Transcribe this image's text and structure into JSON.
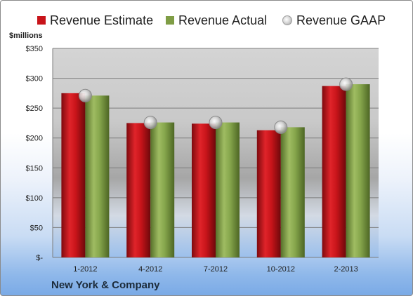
{
  "chart_data": {
    "type": "bar",
    "unit_label": "$millions",
    "categories": [
      "1-2012",
      "4-2012",
      "7-2012",
      "10-2012",
      "2-2013"
    ],
    "series": [
      {
        "name": "Revenue Estimate",
        "kind": "bar",
        "color": "#c8141a",
        "values": [
          275,
          225,
          224,
          213,
          287
        ]
      },
      {
        "name": "Revenue Actual",
        "kind": "bar",
        "color": "#7f9d45",
        "values": [
          271,
          226,
          226,
          218,
          290
        ]
      },
      {
        "name": "Revenue GAAP",
        "kind": "marker",
        "color": "#bdbdbd",
        "values": [
          271,
          226,
          226,
          218,
          290
        ]
      }
    ],
    "yticks": [
      "$-",
      "$50",
      "$100",
      "$150",
      "$200",
      "$250",
      "$300",
      "$350"
    ],
    "ylim": [
      0,
      350
    ],
    "grid": true,
    "legend": "top"
  },
  "footer": {
    "company": "New York & Company"
  }
}
